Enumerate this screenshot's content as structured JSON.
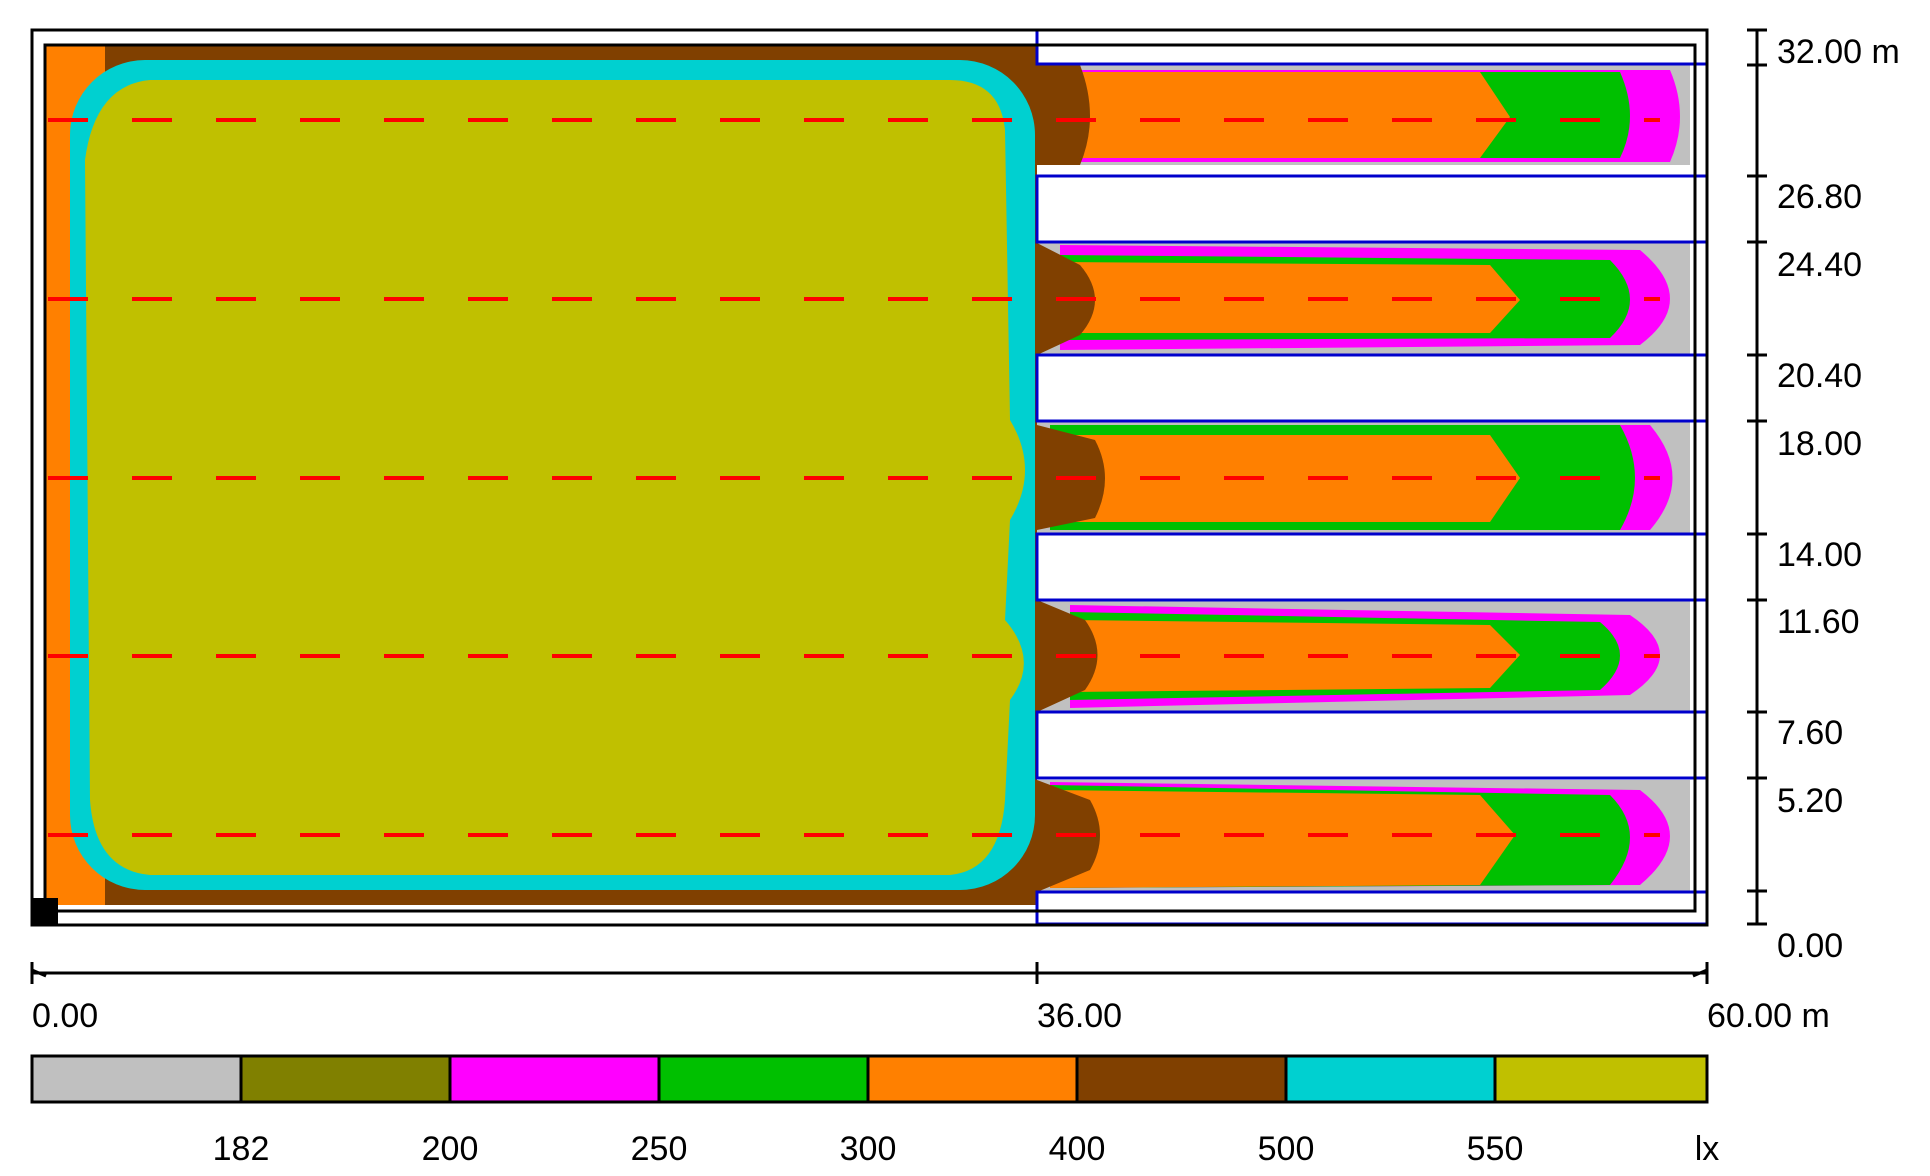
{
  "plan": {
    "x_axis": {
      "ticks": [
        "0.00",
        "36.00",
        "60.00 m"
      ]
    },
    "y_axis": {
      "ticks": [
        "32.00 m",
        "26.80",
        "24.40",
        "20.40",
        "18.00",
        "14.00",
        "11.60",
        "7.60",
        "5.20",
        "0.00"
      ]
    }
  },
  "legend": {
    "unit": "lx",
    "thresholds": [
      "182",
      "200",
      "250",
      "300",
      "400",
      "500",
      "550"
    ],
    "colors": [
      "#c0c0c0",
      "#808000",
      "#ff00ff",
      "#00c000",
      "#ff8000",
      "#804000",
      "#00d0d0",
      "#c0c000"
    ]
  },
  "colors": {
    "frame": "#000000",
    "luminaire_rows": "#ff0000",
    "skylight_outline": "#0000cc"
  }
}
